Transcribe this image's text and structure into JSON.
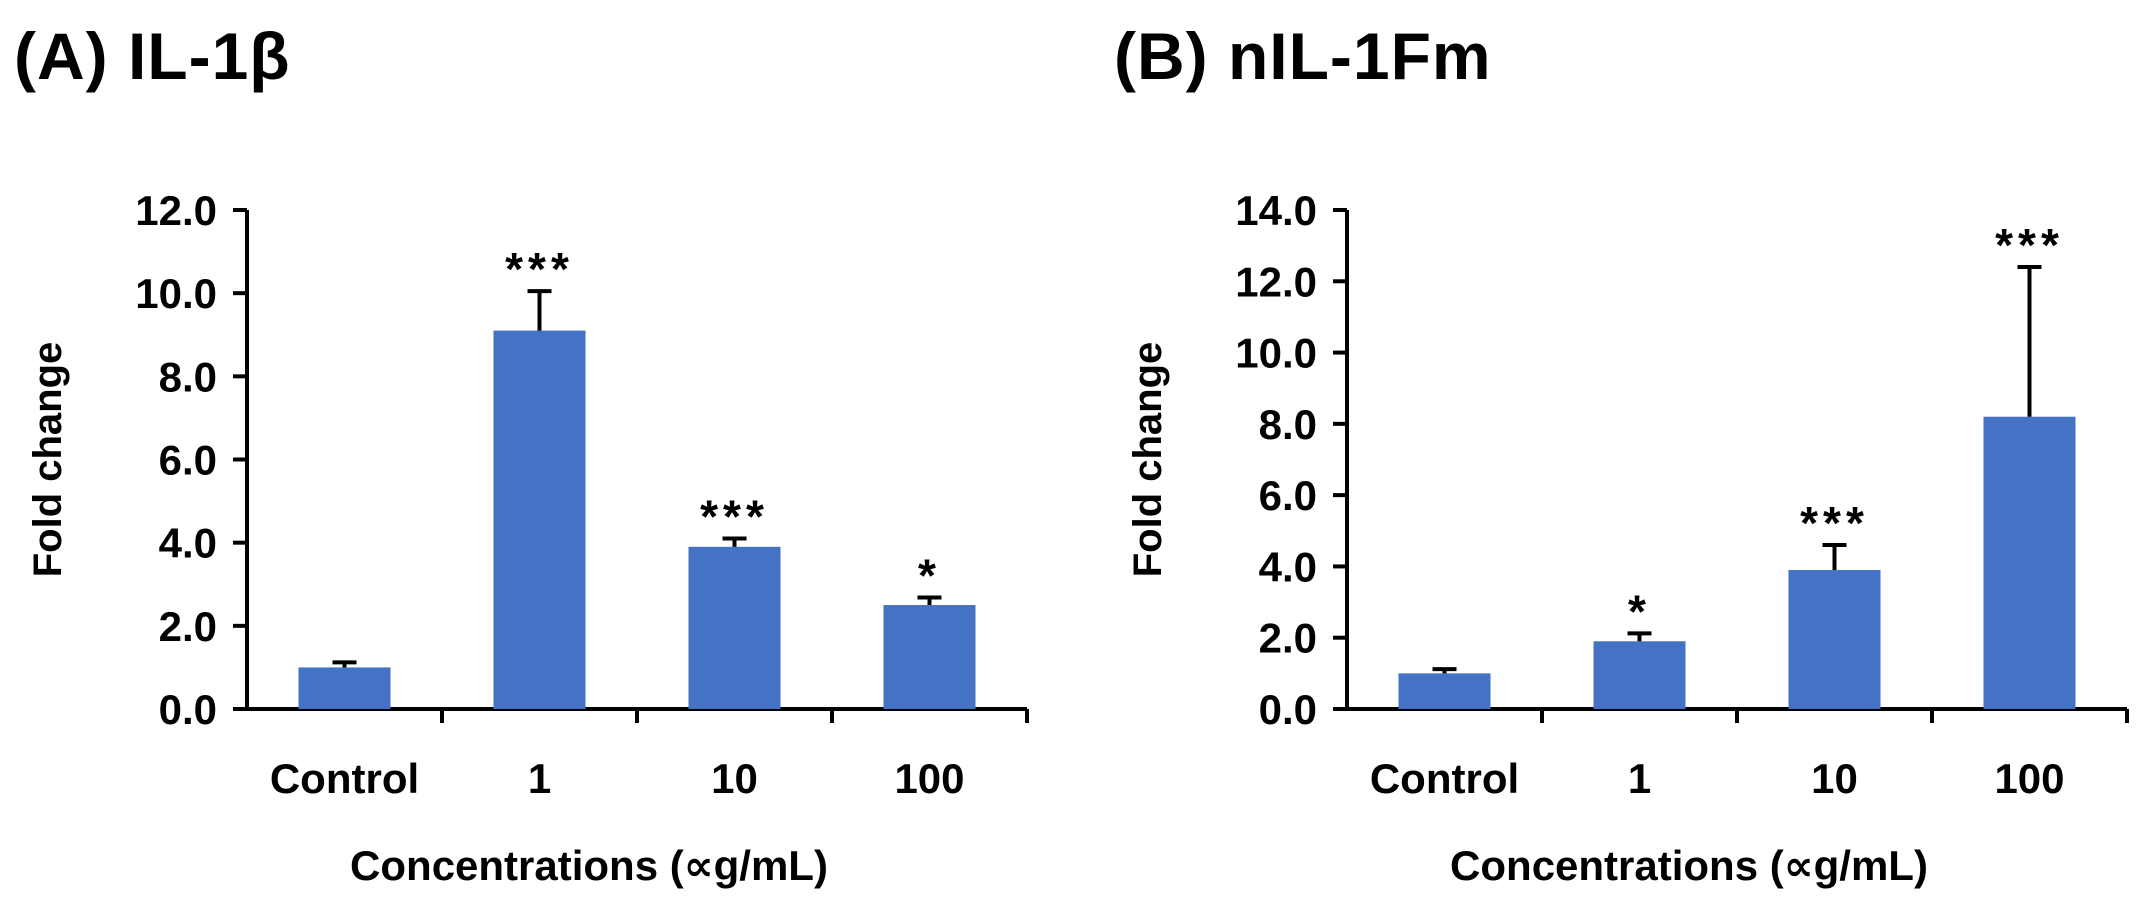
{
  "chart_data": [
    {
      "type": "bar",
      "panel_title": "(A) IL-1β",
      "categories": [
        "Control",
        "1",
        "10",
        "100"
      ],
      "values": [
        1.0,
        9.1,
        3.9,
        2.5
      ],
      "error_bars": [
        0.12,
        0.95,
        0.2,
        0.18
      ],
      "significance": [
        "",
        "***",
        "***",
        "*"
      ],
      "xlabel": "Concentrations (∝g/mL)",
      "ylabel": "Fold change",
      "ylim": [
        0,
        12
      ],
      "yticks": [
        "0.0",
        "2.0",
        "4.0",
        "6.0",
        "8.0",
        "10.0",
        "12.0"
      ],
      "bar_color": "#4472C4",
      "grid": false
    },
    {
      "type": "bar",
      "panel_title": "(B) nIL-1Fm",
      "categories": [
        "Control",
        "1",
        "10",
        "100"
      ],
      "values": [
        1.0,
        1.9,
        3.9,
        8.2
      ],
      "error_bars": [
        0.12,
        0.22,
        0.7,
        4.2
      ],
      "significance": [
        "",
        "*",
        "***",
        "***"
      ],
      "xlabel": "Concentrations (∝g/mL)",
      "ylabel": "Fold change",
      "ylim": [
        0,
        14
      ],
      "yticks": [
        "0.0",
        "2.0",
        "4.0",
        "6.0",
        "8.0",
        "10.0",
        "12.0",
        "14.0"
      ],
      "bar_color": "#4472C4",
      "grid": false
    }
  ]
}
